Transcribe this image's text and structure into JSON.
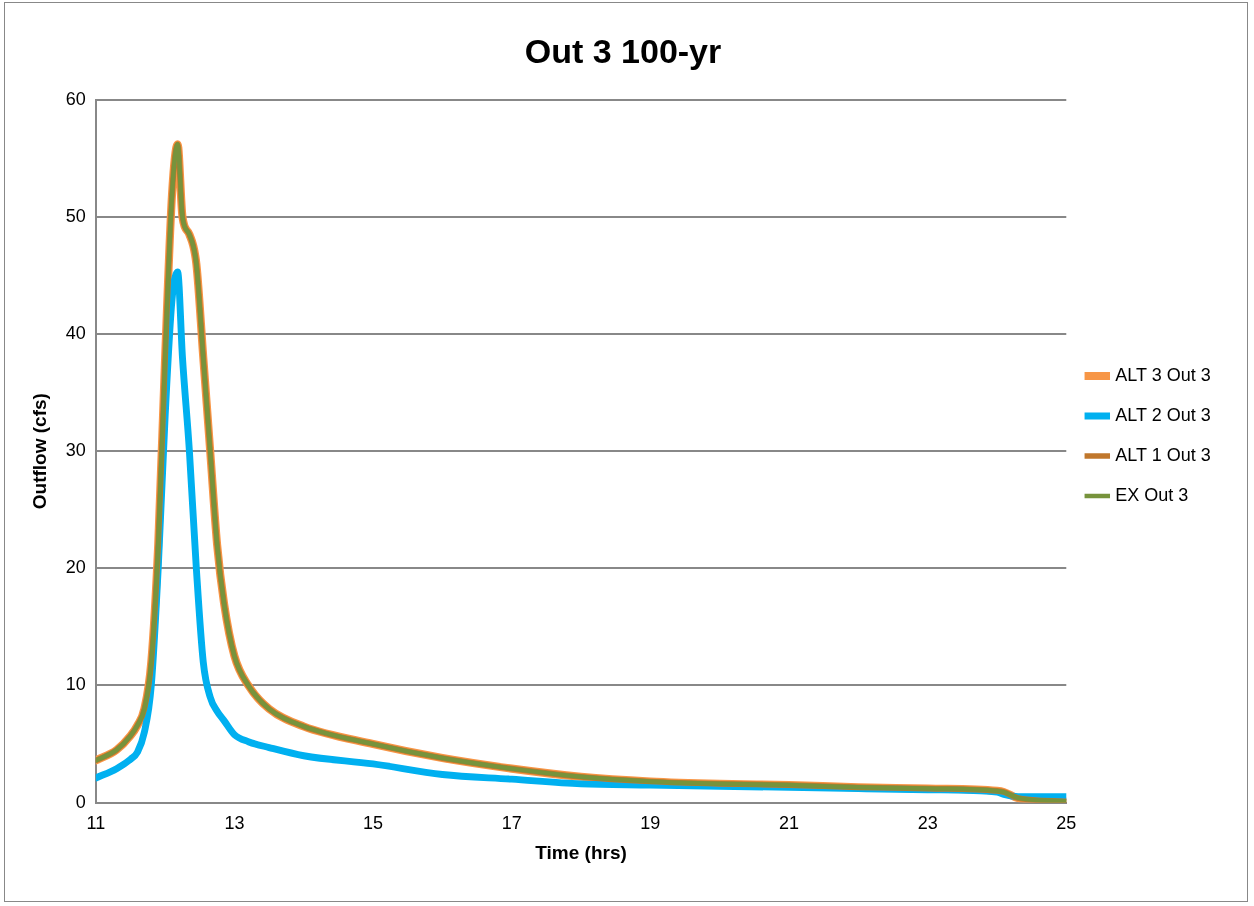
{
  "chart_data": {
    "type": "line",
    "title": "Out 3 100-yr",
    "xlabel": "Time (hrs)",
    "ylabel": "Outflow (cfs)",
    "xlim": [
      11,
      25
    ],
    "xticks": [
      11,
      13,
      15,
      17,
      19,
      21,
      23,
      25
    ],
    "ylim": [
      0,
      60
    ],
    "yticks": [
      0,
      10,
      20,
      30,
      40,
      50,
      60
    ],
    "grid": "y",
    "legend": "right",
    "marker": "none",
    "line_style": "solid",
    "x": [
      11,
      11.3,
      11.5,
      11.6,
      11.7,
      11.8,
      11.9,
      12,
      12.1,
      12.18,
      12.25,
      12.35,
      12.45,
      12.55,
      12.65,
      12.75,
      12.85,
      13,
      13.2,
      13.5,
      14,
      15,
      16,
      17,
      18,
      19,
      20,
      21,
      22,
      23,
      24,
      24.1,
      24.3,
      25
    ],
    "series": [
      {
        "name": "ALT 3 Out 3",
        "color": "#f79646",
        "values": [
          3.6,
          4.5,
          5.7,
          6.6,
          8,
          12,
          22,
          38,
          52,
          56.2,
          50,
          48.5,
          46,
          38,
          30,
          22,
          17,
          12.5,
          10,
          8,
          6.5,
          5,
          3.8,
          2.9,
          2.2,
          1.8,
          1.6,
          1.5,
          1.3,
          1.2,
          1,
          0.9,
          0.4,
          0.1
        ]
      },
      {
        "name": "ALT 2 Out 3",
        "color": "#00b0f0",
        "values": [
          2.1,
          2.9,
          3.7,
          4.3,
          6,
          10,
          20,
          33,
          43,
          45.3,
          38,
          30,
          20,
          12,
          9,
          7.8,
          7,
          5.8,
          5.2,
          4.7,
          4,
          3.3,
          2.4,
          2,
          1.6,
          1.5,
          1.4,
          1.3,
          1.2,
          1.1,
          0.9,
          0.7,
          0.5,
          0.5
        ]
      },
      {
        "name": "ALT 1 Out 3",
        "color": "#c0772c",
        "values": [
          3.6,
          4.5,
          5.7,
          6.6,
          8,
          12,
          22,
          38,
          52,
          56.2,
          50,
          48.5,
          46,
          38,
          30,
          22,
          17,
          12.5,
          10,
          8,
          6.5,
          5,
          3.8,
          2.9,
          2.2,
          1.8,
          1.6,
          1.5,
          1.3,
          1.2,
          1,
          0.9,
          0.4,
          0.1
        ]
      },
      {
        "name": "EX Out 3",
        "color": "#77933c",
        "values": [
          3.6,
          4.5,
          5.7,
          6.6,
          8,
          12,
          22,
          38,
          52,
          56.2,
          50,
          48.5,
          46,
          38,
          30,
          22,
          17,
          12.5,
          10,
          8,
          6.5,
          5,
          3.8,
          2.9,
          2.2,
          1.8,
          1.6,
          1.5,
          1.3,
          1.2,
          1,
          0.9,
          0.4,
          0.1
        ]
      }
    ]
  }
}
